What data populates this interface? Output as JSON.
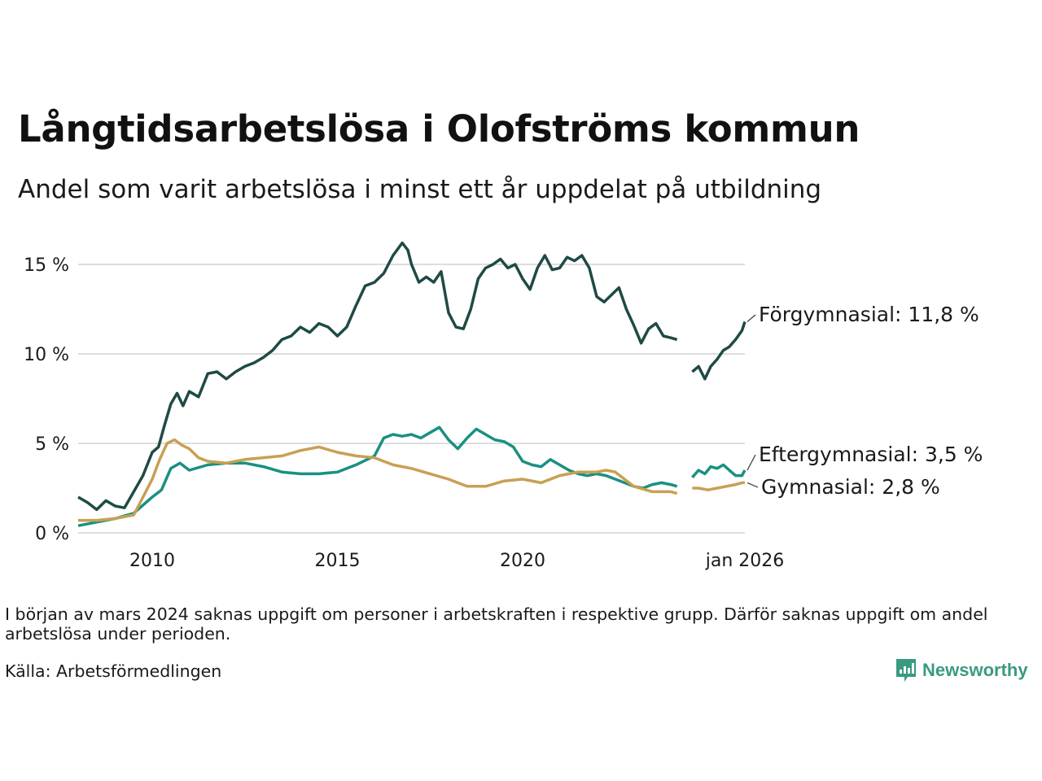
{
  "title": "Långtidsarbetslösa i Olofströms kommun",
  "subtitle": "Andel som varit arbetslösa i minst ett år uppdelat på utbildning",
  "note": "I början av mars 2024 saknas uppgift om personer i arbetskraften i respektive grupp. Därför saknas uppgift om andel arbetslösa under perioden.",
  "source": "Källa: Arbetsförmedlingen",
  "brand": "Newsworthy",
  "colors": {
    "forgymnasial": "#1f4a45",
    "eftergymnasial": "#1a9080",
    "gymnasial": "#c8a052",
    "grid": "#dddddd",
    "brand": "#3a9a80"
  },
  "chart_data": {
    "type": "line",
    "title": "Långtidsarbetslösa i Olofströms kommun",
    "xlabel": "",
    "ylabel": "",
    "xlim": [
      2008.0,
      2026.0
    ],
    "ylim": [
      0,
      16.5
    ],
    "x_ticks": [
      {
        "value": 2010,
        "label": "2010"
      },
      {
        "value": 2015,
        "label": "2015"
      },
      {
        "value": 2020,
        "label": "2020"
      },
      {
        "value": 2026.0,
        "label": "jan 2026"
      }
    ],
    "y_ticks": [
      {
        "value": 0,
        "label": "0 %"
      },
      {
        "value": 5,
        "label": "5 %"
      },
      {
        "value": 10,
        "label": "10 %"
      },
      {
        "value": 15,
        "label": "15 %"
      }
    ],
    "gap": [
      2024.17,
      2024.58
    ],
    "series": [
      {
        "name": "Förgymnasial",
        "end_label": "Förgymnasial: 11,8 %",
        "color": "#1f4a45",
        "points": [
          [
            2008.0,
            2.0
          ],
          [
            2008.25,
            1.7
          ],
          [
            2008.5,
            1.3
          ],
          [
            2008.75,
            1.8
          ],
          [
            2009.0,
            1.5
          ],
          [
            2009.25,
            1.4
          ],
          [
            2009.5,
            2.3
          ],
          [
            2009.75,
            3.2
          ],
          [
            2010.0,
            4.5
          ],
          [
            2010.17,
            4.8
          ],
          [
            2010.33,
            6.0
          ],
          [
            2010.5,
            7.2
          ],
          [
            2010.67,
            7.8
          ],
          [
            2010.83,
            7.1
          ],
          [
            2011.0,
            7.9
          ],
          [
            2011.25,
            7.6
          ],
          [
            2011.5,
            8.9
          ],
          [
            2011.75,
            9.0
          ],
          [
            2012.0,
            8.6
          ],
          [
            2012.25,
            9.0
          ],
          [
            2012.5,
            9.3
          ],
          [
            2012.75,
            9.5
          ],
          [
            2013.0,
            9.8
          ],
          [
            2013.25,
            10.2
          ],
          [
            2013.5,
            10.8
          ],
          [
            2013.75,
            11.0
          ],
          [
            2014.0,
            11.5
          ],
          [
            2014.25,
            11.2
          ],
          [
            2014.5,
            11.7
          ],
          [
            2014.75,
            11.5
          ],
          [
            2015.0,
            11.0
          ],
          [
            2015.25,
            11.5
          ],
          [
            2015.5,
            12.7
          ],
          [
            2015.75,
            13.8
          ],
          [
            2016.0,
            14.0
          ],
          [
            2016.25,
            14.5
          ],
          [
            2016.5,
            15.5
          ],
          [
            2016.75,
            16.2
          ],
          [
            2016.9,
            15.8
          ],
          [
            2017.0,
            15.0
          ],
          [
            2017.2,
            14.0
          ],
          [
            2017.4,
            14.3
          ],
          [
            2017.6,
            14.0
          ],
          [
            2017.8,
            14.6
          ],
          [
            2018.0,
            12.3
          ],
          [
            2018.2,
            11.5
          ],
          [
            2018.4,
            11.4
          ],
          [
            2018.6,
            12.5
          ],
          [
            2018.8,
            14.2
          ],
          [
            2019.0,
            14.8
          ],
          [
            2019.2,
            15.0
          ],
          [
            2019.4,
            15.3
          ],
          [
            2019.6,
            14.8
          ],
          [
            2019.8,
            15.0
          ],
          [
            2020.0,
            14.2
          ],
          [
            2020.2,
            13.6
          ],
          [
            2020.4,
            14.8
          ],
          [
            2020.6,
            15.5
          ],
          [
            2020.8,
            14.7
          ],
          [
            2021.0,
            14.8
          ],
          [
            2021.2,
            15.4
          ],
          [
            2021.4,
            15.2
          ],
          [
            2021.6,
            15.5
          ],
          [
            2021.8,
            14.8
          ],
          [
            2022.0,
            13.2
          ],
          [
            2022.2,
            12.9
          ],
          [
            2022.4,
            13.3
          ],
          [
            2022.6,
            13.7
          ],
          [
            2022.8,
            12.5
          ],
          [
            2023.0,
            11.6
          ],
          [
            2023.2,
            10.6
          ],
          [
            2023.4,
            11.4
          ],
          [
            2023.6,
            11.7
          ],
          [
            2023.8,
            11.0
          ],
          [
            2024.0,
            10.9
          ],
          [
            2024.17,
            10.8
          ],
          [
            2024.58,
            9.0
          ],
          [
            2024.75,
            9.3
          ],
          [
            2024.92,
            8.6
          ],
          [
            2025.08,
            9.3
          ],
          [
            2025.25,
            9.7
          ],
          [
            2025.42,
            10.2
          ],
          [
            2025.58,
            10.4
          ],
          [
            2025.75,
            10.8
          ],
          [
            2025.92,
            11.3
          ],
          [
            2026.0,
            11.8
          ]
        ]
      },
      {
        "name": "Eftergymnasial",
        "end_label": "Eftergymnasial:  3,5 %",
        "color": "#1a9080",
        "points": [
          [
            2008.0,
            0.4
          ],
          [
            2008.5,
            0.6
          ],
          [
            2009.0,
            0.8
          ],
          [
            2009.5,
            1.1
          ],
          [
            2010.0,
            2.0
          ],
          [
            2010.25,
            2.4
          ],
          [
            2010.5,
            3.6
          ],
          [
            2010.75,
            3.9
          ],
          [
            2011.0,
            3.5
          ],
          [
            2011.5,
            3.8
          ],
          [
            2012.0,
            3.9
          ],
          [
            2012.5,
            3.9
          ],
          [
            2013.0,
            3.7
          ],
          [
            2013.5,
            3.4
          ],
          [
            2014.0,
            3.3
          ],
          [
            2014.5,
            3.3
          ],
          [
            2015.0,
            3.4
          ],
          [
            2015.5,
            3.8
          ],
          [
            2016.0,
            4.3
          ],
          [
            2016.25,
            5.3
          ],
          [
            2016.5,
            5.5
          ],
          [
            2016.75,
            5.4
          ],
          [
            2017.0,
            5.5
          ],
          [
            2017.25,
            5.3
          ],
          [
            2017.5,
            5.6
          ],
          [
            2017.75,
            5.9
          ],
          [
            2018.0,
            5.2
          ],
          [
            2018.25,
            4.7
          ],
          [
            2018.5,
            5.3
          ],
          [
            2018.75,
            5.8
          ],
          [
            2019.0,
            5.5
          ],
          [
            2019.25,
            5.2
          ],
          [
            2019.5,
            5.1
          ],
          [
            2019.75,
            4.8
          ],
          [
            2020.0,
            4.0
          ],
          [
            2020.25,
            3.8
          ],
          [
            2020.5,
            3.7
          ],
          [
            2020.75,
            4.1
          ],
          [
            2021.0,
            3.8
          ],
          [
            2021.25,
            3.5
          ],
          [
            2021.5,
            3.3
          ],
          [
            2021.75,
            3.2
          ],
          [
            2022.0,
            3.3
          ],
          [
            2022.25,
            3.2
          ],
          [
            2022.5,
            3.0
          ],
          [
            2022.75,
            2.8
          ],
          [
            2023.0,
            2.6
          ],
          [
            2023.25,
            2.5
          ],
          [
            2023.5,
            2.7
          ],
          [
            2023.75,
            2.8
          ],
          [
            2024.0,
            2.7
          ],
          [
            2024.17,
            2.6
          ],
          [
            2024.58,
            3.1
          ],
          [
            2024.75,
            3.5
          ],
          [
            2024.92,
            3.3
          ],
          [
            2025.08,
            3.7
          ],
          [
            2025.25,
            3.6
          ],
          [
            2025.42,
            3.8
          ],
          [
            2025.58,
            3.5
          ],
          [
            2025.75,
            3.2
          ],
          [
            2025.92,
            3.2
          ],
          [
            2026.0,
            3.5
          ]
        ]
      },
      {
        "name": "Gymnasial",
        "end_label": "Gymnasial:  2,8 %",
        "color": "#c8a052",
        "points": [
          [
            2008.0,
            0.7
          ],
          [
            2008.5,
            0.7
          ],
          [
            2009.0,
            0.8
          ],
          [
            2009.5,
            1.0
          ],
          [
            2010.0,
            3.0
          ],
          [
            2010.2,
            4.1
          ],
          [
            2010.4,
            5.0
          ],
          [
            2010.6,
            5.2
          ],
          [
            2010.8,
            4.9
          ],
          [
            2011.0,
            4.7
          ],
          [
            2011.25,
            4.2
          ],
          [
            2011.5,
            4.0
          ],
          [
            2012.0,
            3.9
          ],
          [
            2012.5,
            4.1
          ],
          [
            2013.0,
            4.2
          ],
          [
            2013.5,
            4.3
          ],
          [
            2014.0,
            4.6
          ],
          [
            2014.5,
            4.8
          ],
          [
            2015.0,
            4.5
          ],
          [
            2015.5,
            4.3
          ],
          [
            2016.0,
            4.2
          ],
          [
            2016.5,
            3.8
          ],
          [
            2017.0,
            3.6
          ],
          [
            2017.5,
            3.3
          ],
          [
            2018.0,
            3.0
          ],
          [
            2018.5,
            2.6
          ],
          [
            2019.0,
            2.6
          ],
          [
            2019.5,
            2.9
          ],
          [
            2020.0,
            3.0
          ],
          [
            2020.5,
            2.8
          ],
          [
            2021.0,
            3.2
          ],
          [
            2021.25,
            3.3
          ],
          [
            2021.5,
            3.4
          ],
          [
            2021.75,
            3.4
          ],
          [
            2022.0,
            3.4
          ],
          [
            2022.25,
            3.5
          ],
          [
            2022.5,
            3.4
          ],
          [
            2022.75,
            3.0
          ],
          [
            2023.0,
            2.6
          ],
          [
            2023.5,
            2.3
          ],
          [
            2024.0,
            2.3
          ],
          [
            2024.17,
            2.2
          ],
          [
            2024.58,
            2.5
          ],
          [
            2024.75,
            2.5
          ],
          [
            2025.0,
            2.4
          ],
          [
            2025.25,
            2.5
          ],
          [
            2025.5,
            2.6
          ],
          [
            2025.75,
            2.7
          ],
          [
            2025.92,
            2.8
          ],
          [
            2026.0,
            2.8
          ]
        ]
      }
    ]
  }
}
